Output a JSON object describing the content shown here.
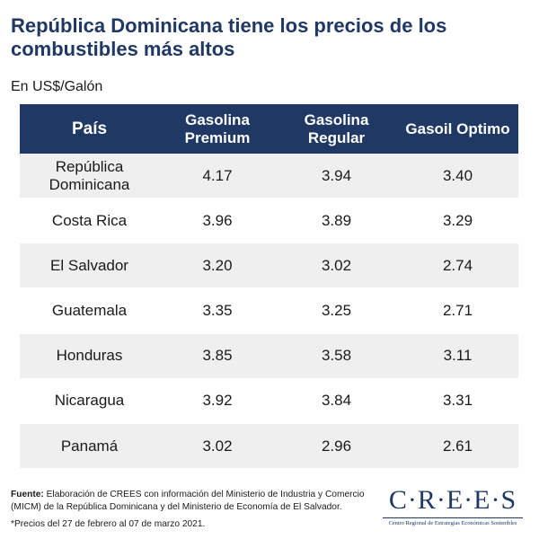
{
  "title": "República Dominicana tiene los precios de los combustibles más altos",
  "subtitle": "En US$/Galón",
  "table": {
    "headers": [
      "País",
      "Gasolina Premium",
      "Gasolina Regular",
      "Gasoil Optimo"
    ],
    "rows": [
      [
        "República Dominicana",
        "4.17",
        "3.94",
        "3.40"
      ],
      [
        "Costa Rica",
        "3.96",
        "3.89",
        "3.29"
      ],
      [
        "El Salvador",
        "3.20",
        "3.02",
        "2.74"
      ],
      [
        "Guatemala",
        "3.35",
        "3.25",
        "2.71"
      ],
      [
        "Honduras",
        "3.85",
        "3.58",
        "3.11"
      ],
      [
        "Nicaragua",
        "3.92",
        "3.84",
        "3.31"
      ],
      [
        "Panamá",
        "3.02",
        "2.96",
        "2.61"
      ]
    ]
  },
  "footer": {
    "source_label": "Fuente:",
    "source_text": "Elaboración de CREES con información del Ministerio de Industria y Comercio (MICM) de la República Dominicana y del  Ministerio de Economía de El Salvador.",
    "note": "*Precios del 27 de febrero al 07 de marzo 2021."
  },
  "logo": {
    "name": "C·R·E·E·S",
    "tagline": "Centro Regional de Estrategias Económicas Sostenibles"
  },
  "colors": {
    "header_bg": "#1f3864",
    "title": "#1f3864",
    "row_shade": "#efefef"
  }
}
